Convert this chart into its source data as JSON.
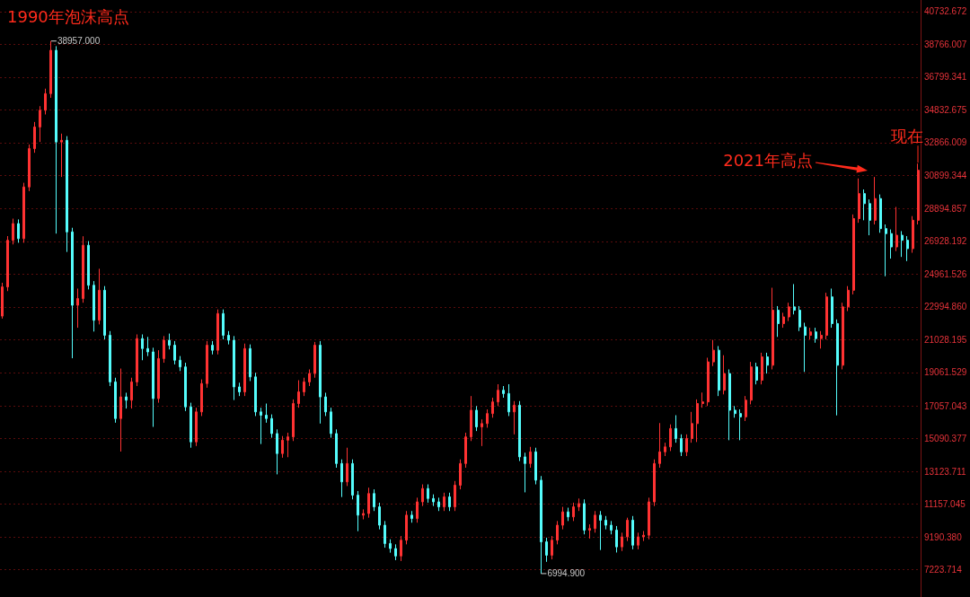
{
  "chart_data": {
    "type": "candlestick",
    "categories": [
      null,
      null,
      null,
      null,
      null,
      null,
      null,
      null,
      null,
      null,
      null,
      null,
      null,
      null,
      null,
      null,
      null,
      null,
      null,
      null,
      null,
      null,
      null,
      null,
      null,
      null,
      null,
      null,
      null,
      null,
      null,
      null,
      null,
      null,
      null,
      null,
      null,
      null,
      null,
      null,
      null,
      null,
      null,
      null,
      null,
      null,
      null,
      null,
      null,
      null,
      null,
      null,
      null,
      null,
      null,
      null,
      null,
      null,
      null,
      null,
      null,
      null,
      null,
      null,
      null,
      null,
      null,
      null,
      null,
      null,
      null,
      null,
      null,
      null,
      null,
      null,
      null,
      null,
      null,
      null,
      null,
      null,
      null,
      null,
      null,
      null,
      null,
      null,
      null,
      null,
      null,
      null,
      null,
      null,
      null,
      null,
      null,
      null,
      null,
      null,
      null,
      null,
      null,
      null,
      null,
      null,
      null,
      null,
      null,
      null,
      null,
      null,
      null,
      null,
      null,
      null,
      null,
      null,
      null,
      null,
      null,
      null,
      null,
      null,
      null,
      null,
      null,
      null,
      null,
      null,
      null,
      null,
      null,
      null,
      null,
      null,
      null,
      null,
      null,
      null,
      null,
      null,
      null,
      null,
      null,
      null,
      null,
      null,
      null,
      null,
      null,
      null,
      null,
      null,
      null,
      null,
      null,
      null,
      null,
      null,
      null,
      null,
      null,
      null,
      null,
      null,
      null,
      null,
      null,
      null,
      null
    ],
    "ohlc": [
      [
        22450,
        24450,
        22300,
        24200
      ],
      [
        24200,
        27250,
        23950,
        27000
      ],
      [
        27000,
        28300,
        26750,
        28000
      ],
      [
        28000,
        28250,
        26850,
        27100
      ],
      [
        27100,
        30450,
        26850,
        30200
      ],
      [
        30200,
        32750,
        29950,
        32500
      ],
      [
        32500,
        34100,
        32250,
        33800
      ],
      [
        33800,
        35050,
        32900,
        34800
      ],
      [
        34800,
        36100,
        34550,
        35800
      ],
      [
        35800,
        38957,
        35550,
        38400
      ],
      [
        38400,
        38650,
        27400,
        32900
      ],
      [
        32900,
        33400,
        30800,
        33000
      ],
      [
        33000,
        33250,
        26300,
        27500
      ],
      [
        27500,
        27750,
        19920,
        23100
      ],
      [
        23100,
        24100,
        21750,
        23500
      ],
      [
        23500,
        27240,
        23250,
        26700
      ],
      [
        26700,
        26950,
        24050,
        24300
      ],
      [
        24300,
        24550,
        21520,
        22200
      ],
      [
        22200,
        25290,
        21950,
        24000
      ],
      [
        24000,
        24250,
        21050,
        21300
      ],
      [
        21300,
        21550,
        18250,
        18500
      ],
      [
        18500,
        18750,
        16050,
        16300
      ],
      [
        16300,
        19300,
        14320,
        17600
      ],
      [
        17600,
        17850,
        16900,
        17400
      ],
      [
        17400,
        18750,
        16900,
        18500
      ],
      [
        18500,
        21350,
        18250,
        21100
      ],
      [
        21100,
        21350,
        19800,
        20500
      ],
      [
        20500,
        21200,
        20050,
        20300
      ],
      [
        20300,
        20550,
        15800,
        17500
      ],
      [
        17500,
        20400,
        17250,
        19900
      ],
      [
        19900,
        21250,
        19650,
        21000
      ],
      [
        21000,
        21400,
        20450,
        20700
      ],
      [
        20700,
        20950,
        19550,
        19800
      ],
      [
        19800,
        20050,
        19150,
        19400
      ],
      [
        19400,
        19650,
        16750,
        17000
      ],
      [
        17000,
        17250,
        14550,
        14900
      ],
      [
        14900,
        16950,
        14650,
        16700
      ],
      [
        16700,
        18650,
        16450,
        18400
      ],
      [
        18400,
        20950,
        18150,
        20700
      ],
      [
        20700,
        20950,
        20150,
        20400
      ],
      [
        20400,
        22850,
        20150,
        22600
      ],
      [
        22600,
        22850,
        21050,
        21300
      ],
      [
        21300,
        21550,
        20750,
        21000
      ],
      [
        21000,
        21250,
        17410,
        18200
      ],
      [
        18200,
        18450,
        17650,
        17900
      ],
      [
        17900,
        20800,
        17650,
        20500
      ],
      [
        20500,
        20750,
        18550,
        18800
      ],
      [
        18800,
        19050,
        16450,
        16700
      ],
      [
        16700,
        16950,
        14770,
        16500
      ],
      [
        16500,
        17200,
        16050,
        16300
      ],
      [
        16300,
        16550,
        15150,
        15400
      ],
      [
        15400,
        15650,
        12950,
        14200
      ],
      [
        14200,
        15250,
        13950,
        15000
      ],
      [
        15000,
        15450,
        13980,
        15200
      ],
      [
        15200,
        17450,
        14950,
        17200
      ],
      [
        17200,
        18600,
        16950,
        17900
      ],
      [
        17900,
        18750,
        17650,
        18500
      ],
      [
        18500,
        19250,
        18250,
        19000
      ],
      [
        19000,
        20900,
        18750,
        20700
      ],
      [
        20700,
        20950,
        16000,
        17600
      ],
      [
        17600,
        17850,
        16450,
        16700
      ],
      [
        16700,
        16950,
        15150,
        15400
      ],
      [
        15400,
        15650,
        13350,
        13600
      ],
      [
        13600,
        13850,
        11590,
        12500
      ],
      [
        12500,
        14550,
        12250,
        13600
      ],
      [
        13600,
        13850,
        11450,
        11700
      ],
      [
        11700,
        11950,
        9540,
        10500
      ],
      [
        10500,
        10850,
        10250,
        10600
      ],
      [
        10600,
        12150,
        10350,
        11800
      ],
      [
        11800,
        12050,
        10750,
        11000
      ],
      [
        11000,
        11250,
        9650,
        9900
      ],
      [
        9900,
        10150,
        8550,
        8800
      ],
      [
        8800,
        9050,
        8250,
        8500
      ],
      [
        8500,
        8750,
        7800,
        8050
      ],
      [
        8050,
        9250,
        7750,
        9000
      ],
      [
        9000,
        10750,
        8750,
        10500
      ],
      [
        10500,
        10750,
        10050,
        10300
      ],
      [
        10300,
        11550,
        10050,
        11300
      ],
      [
        11300,
        12350,
        11050,
        12100
      ],
      [
        12100,
        12350,
        11250,
        11500
      ],
      [
        11500,
        11750,
        11050,
        11300
      ],
      [
        11300,
        11550,
        10750,
        11000
      ],
      [
        11000,
        11850,
        10750,
        11600
      ],
      [
        11600,
        11850,
        10750,
        11000
      ],
      [
        11000,
        12550,
        10750,
        12300
      ],
      [
        12300,
        13850,
        12050,
        13600
      ],
      [
        13600,
        15450,
        13350,
        15200
      ],
      [
        15200,
        17650,
        14950,
        16800
      ],
      [
        16800,
        17050,
        15550,
        15800
      ],
      [
        15800,
        16250,
        14650,
        16000
      ],
      [
        16000,
        16850,
        15750,
        16600
      ],
      [
        16600,
        17550,
        16350,
        17300
      ],
      [
        17300,
        18360,
        17050,
        18000
      ],
      [
        18000,
        18250,
        17550,
        17800
      ],
      [
        17800,
        18360,
        16450,
        16700
      ],
      [
        16700,
        17350,
        15350,
        17100
      ],
      [
        17100,
        17350,
        13750,
        14000
      ],
      [
        14000,
        14250,
        11870,
        13600
      ],
      [
        13600,
        14600,
        13350,
        14300
      ],
      [
        14300,
        14550,
        12350,
        12600
      ],
      [
        12600,
        12850,
        6994.9,
        8900
      ],
      [
        8900,
        9150,
        7700,
        8100
      ],
      [
        8100,
        9250,
        7850,
        9000
      ],
      [
        9000,
        10150,
        8750,
        9900
      ],
      [
        9900,
        11000,
        9650,
        10700
      ],
      [
        10700,
        10950,
        10150,
        10400
      ],
      [
        10400,
        11250,
        10150,
        11000
      ],
      [
        11000,
        11500,
        10750,
        11200
      ],
      [
        11200,
        11450,
        9350,
        9600
      ],
      [
        9600,
        9950,
        9100,
        9700
      ],
      [
        9700,
        10750,
        9450,
        10500
      ],
      [
        10500,
        10750,
        8410,
        10200
      ],
      [
        10200,
        10450,
        9650,
        9900
      ],
      [
        9900,
        10150,
        9350,
        9600
      ],
      [
        9600,
        9850,
        8260,
        8600
      ],
      [
        8600,
        9450,
        8350,
        9200
      ],
      [
        9200,
        10350,
        8950,
        10200
      ],
      [
        10200,
        10450,
        8450,
        8700
      ],
      [
        8700,
        9450,
        8450,
        9200
      ],
      [
        9200,
        9550,
        8950,
        9300
      ],
      [
        9300,
        11550,
        9050,
        11300
      ],
      [
        11300,
        13850,
        11050,
        13600
      ],
      [
        13600,
        16030,
        13350,
        14300
      ],
      [
        14300,
        14850,
        14050,
        14600
      ],
      [
        14600,
        15950,
        14350,
        15700
      ],
      [
        15700,
        16500,
        14850,
        15100
      ],
      [
        15100,
        15350,
        14050,
        14300
      ],
      [
        14300,
        15350,
        14050,
        15100
      ],
      [
        15100,
        16700,
        14850,
        16000
      ],
      [
        16000,
        17450,
        14890,
        17200
      ],
      [
        17200,
        17860,
        16950,
        17300
      ],
      [
        17300,
        19950,
        17050,
        19700
      ],
      [
        19700,
        21020,
        19450,
        20400
      ],
      [
        20400,
        20650,
        17650,
        18000
      ],
      [
        18000,
        20100,
        17750,
        19000
      ],
      [
        19000,
        19250,
        15000,
        16800
      ],
      [
        16800,
        17050,
        16350,
        16600
      ],
      [
        16600,
        16850,
        15000,
        16400
      ],
      [
        16400,
        17650,
        16150,
        17400
      ],
      [
        17400,
        19700,
        17150,
        19400
      ],
      [
        19400,
        19650,
        18350,
        18600
      ],
      [
        18600,
        20250,
        18350,
        20000
      ],
      [
        20000,
        20250,
        19000,
        19500
      ],
      [
        19500,
        24150,
        19250,
        22800
      ],
      [
        22800,
        23050,
        21200,
        22000
      ],
      [
        22000,
        22650,
        21750,
        22400
      ],
      [
        22400,
        23250,
        22150,
        23000
      ],
      [
        23000,
        24370,
        22550,
        22800
      ],
      [
        22800,
        23050,
        21550,
        21800
      ],
      [
        21800,
        22050,
        19100,
        21300
      ],
      [
        21300,
        21750,
        21050,
        21500
      ],
      [
        21500,
        21750,
        20850,
        21100
      ],
      [
        21100,
        21550,
        20500,
        21300
      ],
      [
        21300,
        23850,
        21050,
        23600
      ],
      [
        23600,
        24100,
        21750,
        22000
      ],
      [
        22000,
        22250,
        16490,
        19500
      ],
      [
        19500,
        23250,
        19250,
        23000
      ],
      [
        23000,
        24250,
        22750,
        24000
      ],
      [
        24000,
        28550,
        23750,
        28300
      ],
      [
        28300,
        30710,
        28050,
        29800
      ],
      [
        29800,
        30050,
        28200,
        29200
      ],
      [
        29200,
        29450,
        27300,
        28200
      ],
      [
        28200,
        30800,
        27950,
        29500
      ],
      [
        29500,
        29750,
        27450,
        27700
      ],
      [
        27700,
        27950,
        24840,
        27400
      ],
      [
        27400,
        27650,
        25900,
        26600
      ],
      [
        26600,
        29000,
        26350,
        27300
      ],
      [
        27300,
        27550,
        26000,
        27000
      ],
      [
        27000,
        27250,
        25750,
        26500
      ],
      [
        26500,
        28450,
        26250,
        28200
      ],
      [
        28200,
        31600,
        27950,
        31200
      ]
    ],
    "colors": [
      "#ff3232",
      "#ff3232",
      "#ff3232",
      "#54fcfc",
      "#ff3232",
      "#ff3232",
      "#ff3232",
      "#ff3232",
      "#ff3232",
      "#ff3232",
      "#54fcfc",
      "#ff3232",
      "#54fcfc",
      "#54fcfc",
      "#ff3232",
      "#ff3232",
      "#54fcfc",
      "#54fcfc",
      "#ff3232",
      "#54fcfc",
      "#54fcfc",
      "#54fcfc",
      "#ff3232",
      "#54fcfc",
      "#ff3232",
      "#ff3232",
      "#54fcfc",
      "#54fcfc",
      "#54fcfc",
      "#ff3232",
      "#ff3232",
      "#54fcfc",
      "#54fcfc",
      "#54fcfc",
      "#54fcfc",
      "#54fcfc",
      "#ff3232",
      "#ff3232",
      "#ff3232",
      "#54fcfc",
      "#ff3232",
      "#54fcfc",
      "#54fcfc",
      "#54fcfc",
      "#54fcfc",
      "#ff3232",
      "#54fcfc",
      "#54fcfc",
      "#54fcfc",
      "#54fcfc",
      "#54fcfc",
      "#54fcfc",
      "#ff3232",
      "#ff3232",
      "#ff3232",
      "#ff3232",
      "#ff3232",
      "#ff3232",
      "#ff3232",
      "#54fcfc",
      "#54fcfc",
      "#54fcfc",
      "#54fcfc",
      "#54fcfc",
      "#ff3232",
      "#54fcfc",
      "#54fcfc",
      "#ff3232",
      "#ff3232",
      "#54fcfc",
      "#54fcfc",
      "#54fcfc",
      "#54fcfc",
      "#54fcfc",
      "#ff3232",
      "#ff3232",
      "#54fcfc",
      "#ff3232",
      "#ff3232",
      "#54fcfc",
      "#54fcfc",
      "#54fcfc",
      "#ff3232",
      "#54fcfc",
      "#ff3232",
      "#ff3232",
      "#ff3232",
      "#ff3232",
      "#54fcfc",
      "#ff3232",
      "#ff3232",
      "#ff3232",
      "#ff3232",
      "#54fcfc",
      "#54fcfc",
      "#ff3232",
      "#54fcfc",
      "#54fcfc",
      "#ff3232",
      "#54fcfc",
      "#54fcfc",
      "#54fcfc",
      "#ff3232",
      "#ff3232",
      "#ff3232",
      "#54fcfc",
      "#ff3232",
      "#ff3232",
      "#54fcfc",
      "#ff3232",
      "#ff3232",
      "#54fcfc",
      "#54fcfc",
      "#54fcfc",
      "#54fcfc",
      "#ff3232",
      "#ff3232",
      "#54fcfc",
      "#ff3232",
      "#ff3232",
      "#ff3232",
      "#ff3232",
      "#ff3232",
      "#ff3232",
      "#ff3232",
      "#54fcfc",
      "#54fcfc",
      "#ff3232",
      "#ff3232",
      "#ff3232",
      "#ff3232",
      "#ff3232",
      "#ff3232",
      "#54fcfc",
      "#ff3232",
      "#54fcfc",
      "#54fcfc",
      "#54fcfc",
      "#ff3232",
      "#ff3232",
      "#54fcfc",
      "#ff3232",
      "#54fcfc",
      "#ff3232",
      "#54fcfc",
      "#ff3232",
      "#ff3232",
      "#54fcfc",
      "#54fcfc",
      "#54fcfc",
      "#ff3232",
      "#54fcfc",
      "#ff3232",
      "#ff3232",
      "#54fcfc",
      "#54fcfc",
      "#ff3232",
      "#ff3232",
      "#ff3232",
      "#ff3232",
      "#54fcfc",
      "#54fcfc",
      "#ff3232",
      "#54fcfc",
      "#54fcfc",
      "#54fcfc",
      "#ff3232",
      "#54fcfc",
      "#54fcfc",
      "#ff3232",
      "#ff3232"
    ],
    "ylim": [
      5590,
      41420
    ],
    "yticks": [
      7223.714,
      {
        "value": 9190.38,
        "label": "9190.380"
      },
      11157.045,
      13123.711,
      15090.377,
      17057.043,
      19061.529,
      21028.195,
      {
        "value": 22994.86,
        "label": "22994.860"
      },
      24961.526,
      26928.192,
      28894.857,
      30899.344,
      32866.009,
      34832.675,
      36799.341,
      38766.007,
      40732.672
    ],
    "grid": "y",
    "tick_labels": "y",
    "annotations": [
      "1990年泡沫高点",
      "38957.000",
      "6994.900",
      "2021年高点",
      "现在"
    ]
  }
}
